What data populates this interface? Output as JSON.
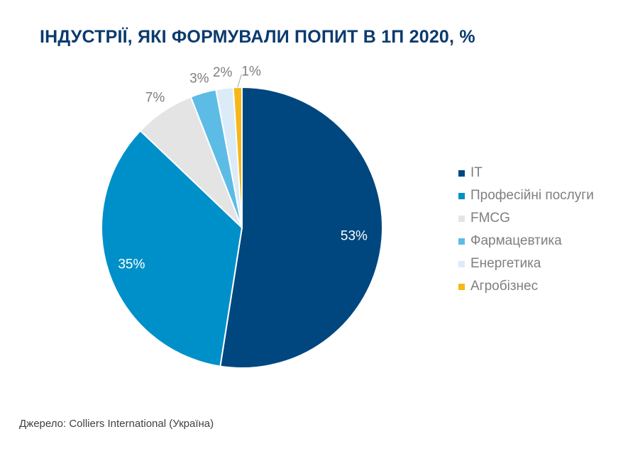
{
  "title": "ІНДУСТРІЇ, ЯКІ ФОРМУВАЛИ ПОПИТ В 1П 2020, %",
  "source": "Джерело: Colliers International (Україна)",
  "chart_data": {
    "type": "pie",
    "title": "ІНДУСТРІЇ, ЯКІ ФОРМУВАЛИ ПОПИТ В 1П 2020, %",
    "legend_position": "right",
    "slices": [
      {
        "name": "IT",
        "value": 53,
        "label": "53%",
        "color": "#00477f"
      },
      {
        "name": "Професійні послуги",
        "value": 35,
        "label": "35%",
        "color": "#0090c9"
      },
      {
        "name": "FMCG",
        "value": 7,
        "label": "7%",
        "color": "#e4e4e4"
      },
      {
        "name": "Фармацевтика",
        "value": 3,
        "label": "3%",
        "color": "#5cbce6"
      },
      {
        "name": "Енергетика",
        "value": 2,
        "label": "2%",
        "color": "#dcebf8"
      },
      {
        "name": "Агробізнес",
        "value": 1,
        "label": "1%",
        "color": "#f5b71a"
      }
    ]
  }
}
